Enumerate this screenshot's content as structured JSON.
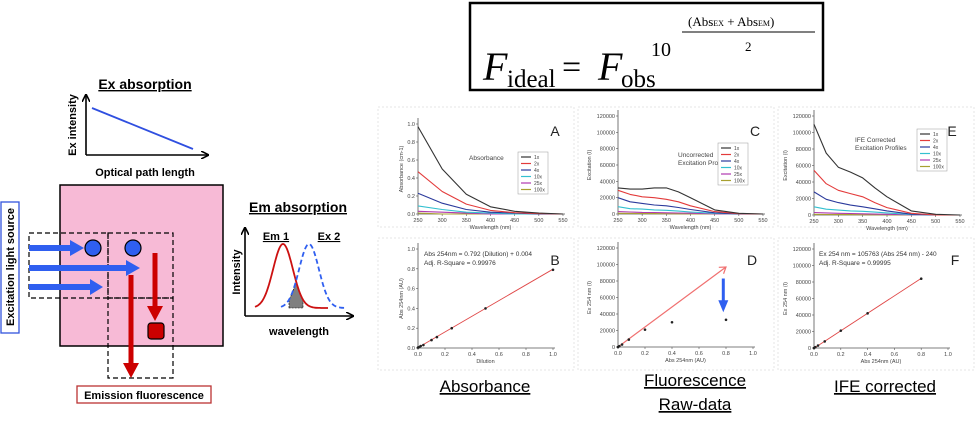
{
  "formula": {
    "lhs_symbol": "F",
    "lhs_sub": "ideal",
    "equals": "=",
    "rhs_symbol": "F",
    "rhs_sub": "obs",
    "base": "10",
    "numerator_open": "(Abs",
    "numerator_sub1": "EX",
    "numerator_mid": " + Abs",
    "numerator_sub2": "EM",
    "numerator_close": ")",
    "denominator": "2"
  },
  "schematic": {
    "ex_title": "Ex absorption",
    "ex_ylabel": "Ex intensity",
    "ex_xlabel": "Optical path length",
    "em_title": "Em absorption",
    "em_ylabel": "Intensity",
    "em_xlabel": "wavelength",
    "em_curve1": "Em 1",
    "em_curve2": "Ex 2",
    "source_label": "Excitation light source",
    "emission_label": "Emission fluorescence",
    "colors": {
      "cuvette": "#f7bad6",
      "excitation": "#2f5ff0",
      "emission": "#cc0000",
      "overlap": "#808080"
    }
  },
  "captions": {
    "absorbance": "Absorbance",
    "fluorescence_1": "Fluorescence",
    "fluorescence_2": "Raw-data",
    "ife": "IFE corrected"
  },
  "chart_data": [
    {
      "panel": "A",
      "type": "line",
      "title": "Absorbance",
      "xlabel": "Wavelength (nm)",
      "ylabel": "Absorbance (cm-1)",
      "xlim": [
        250,
        550
      ],
      "ylim": [
        0,
        1.0
      ],
      "xticks": [
        250,
        300,
        350,
        400,
        450,
        500,
        550
      ],
      "yticks": [
        "0.0",
        "0.2",
        "0.4",
        "0.6",
        "0.8",
        "1.0"
      ],
      "x": [
        250,
        300,
        350,
        400,
        450,
        500,
        550
      ],
      "series": [
        {
          "name": "1x",
          "color": "#333333",
          "values": [
            0.97,
            0.5,
            0.22,
            0.08,
            0.03,
            0.01,
            0.0
          ]
        },
        {
          "name": "2x",
          "color": "#e33b3b",
          "values": [
            0.47,
            0.25,
            0.11,
            0.04,
            0.015,
            0.005,
            0.0
          ]
        },
        {
          "name": "4x",
          "color": "#2b3a9c",
          "values": [
            0.23,
            0.12,
            0.05,
            0.02,
            0.01,
            0.0,
            0.0
          ]
        },
        {
          "name": "10x",
          "color": "#33c0d0",
          "values": [
            0.09,
            0.05,
            0.02,
            0.01,
            0.0,
            0.0,
            0.0
          ]
        },
        {
          "name": "25x",
          "color": "#b03ab0",
          "values": [
            0.03,
            0.02,
            0.01,
            0.0,
            0.0,
            0.0,
            0.0
          ]
        },
        {
          "name": "100x",
          "color": "#a8a030",
          "values": [
            0.01,
            0.0,
            0.0,
            0.0,
            0.0,
            0.0,
            0.0
          ]
        }
      ]
    },
    {
      "panel": "C",
      "type": "line",
      "title": "Uncorrected|Excitation Profiles",
      "xlabel": "Wavelength (nm)",
      "ylabel": "Excitation (I)",
      "xlim": [
        250,
        550
      ],
      "ylim": [
        0,
        120000
      ],
      "xticks": [
        250,
        300,
        350,
        400,
        450,
        500,
        550
      ],
      "yticks": [
        "0",
        "20000",
        "40000",
        "60000",
        "80000",
        "100000",
        "120000"
      ],
      "x": [
        250,
        275,
        300,
        325,
        350,
        375,
        400,
        450,
        500,
        550
      ],
      "series": [
        {
          "name": "1x",
          "color": "#333333",
          "values": [
            32000,
            30500,
            30500,
            32000,
            32000,
            27000,
            20000,
            5000,
            800,
            0
          ]
        },
        {
          "name": "2x",
          "color": "#e33b3b",
          "values": [
            29000,
            24000,
            21000,
            20000,
            18000,
            15000,
            10000,
            3000,
            400,
            0
          ]
        },
        {
          "name": "4x",
          "color": "#2b3a9c",
          "values": [
            20000,
            15000,
            13000,
            11000,
            10000,
            8000,
            5500,
            1500,
            0,
            0
          ]
        },
        {
          "name": "10x",
          "color": "#33c0d0",
          "values": [
            9000,
            6500,
            6000,
            5000,
            4500,
            3500,
            2500,
            800,
            0,
            0
          ]
        },
        {
          "name": "25x",
          "color": "#b03ab0",
          "values": [
            3000,
            2500,
            2000,
            1800,
            1500,
            1200,
            1000,
            300,
            0,
            0
          ]
        },
        {
          "name": "100x",
          "color": "#a8a030",
          "values": [
            800,
            700,
            600,
            500,
            400,
            300,
            300,
            100,
            0,
            0
          ]
        }
      ]
    },
    {
      "panel": "E",
      "type": "line",
      "title": "IFE Corrected|Excitation Profiles",
      "xlabel": "Wavelength (nm)",
      "ylabel": "Excitation (I)",
      "xlim": [
        250,
        550
      ],
      "ylim": [
        0,
        120000
      ],
      "xticks": [
        250,
        300,
        350,
        400,
        450,
        500,
        550
      ],
      "yticks": [
        "0",
        "20000",
        "40000",
        "60000",
        "80000",
        "100000",
        "120000"
      ],
      "x": [
        250,
        275,
        300,
        325,
        350,
        375,
        400,
        450,
        500,
        550
      ],
      "series": [
        {
          "name": "1x",
          "color": "#333333",
          "values": [
            110000,
            75000,
            58000,
            52000,
            45000,
            33000,
            22000,
            5000,
            800,
            0
          ]
        },
        {
          "name": "2x",
          "color": "#e33b3b",
          "values": [
            54000,
            38000,
            30000,
            26000,
            22000,
            15000,
            9000,
            2000,
            0,
            0
          ]
        },
        {
          "name": "4x",
          "color": "#2b3a9c",
          "values": [
            28000,
            19000,
            15000,
            12000,
            10000,
            7500,
            5000,
            1000,
            0,
            0
          ]
        },
        {
          "name": "10x",
          "color": "#33c0d0",
          "values": [
            10000,
            7000,
            6000,
            5000,
            4500,
            3500,
            2500,
            500,
            0,
            0
          ]
        },
        {
          "name": "25x",
          "color": "#b03ab0",
          "values": [
            3000,
            2500,
            2000,
            1800,
            1500,
            1100,
            800,
            200,
            0,
            0
          ]
        },
        {
          "name": "100x",
          "color": "#a8a030",
          "values": [
            800,
            600,
            500,
            450,
            400,
            300,
            200,
            0,
            0,
            0
          ]
        }
      ]
    },
    {
      "panel": "B",
      "type": "scatter",
      "annotation": [
        "Abs 254nm = 0.792 (Dilution) + 0.004",
        "Adj. R-Square = 0.99976"
      ],
      "xlabel": "Dilution",
      "ylabel": "Abs 254nm (AU)",
      "xlim": [
        0,
        1.0
      ],
      "ylim": [
        0,
        1.0
      ],
      "xticks": [
        "0.0",
        "0.2",
        "0.4",
        "0.6",
        "0.8",
        "1.0"
      ],
      "yticks": [
        "0.0",
        "0.2",
        "0.4",
        "0.6",
        "0.8",
        "1.0"
      ],
      "points": {
        "x": [
          0,
          0.01,
          0.02,
          0.04,
          0.1,
          0.14,
          0.25,
          0.5,
          1.0
        ],
        "y": [
          0.004,
          0.01,
          0.02,
          0.03,
          0.08,
          0.11,
          0.2,
          0.4,
          0.79
        ]
      },
      "fit": {
        "slope": 0.792,
        "intercept": 0.004,
        "x_range": [
          0,
          1.0
        ],
        "color": "#e04848"
      }
    },
    {
      "panel": "D",
      "type": "scatter",
      "xlabel": "Abs 254nm (AU)",
      "ylabel": "Ex 254 nm (I)",
      "xlim": [
        0,
        1.0
      ],
      "ylim": [
        0,
        120000
      ],
      "xticks": [
        "0.0",
        "0.2",
        "0.4",
        "0.6",
        "0.8",
        "1.0"
      ],
      "yticks": [
        "0",
        "20000",
        "40000",
        "60000",
        "80000",
        "100000",
        "120000"
      ],
      "points": {
        "x": [
          0,
          0.01,
          0.03,
          0.08,
          0.2,
          0.4,
          0.8
        ],
        "y": [
          0,
          1000,
          3000,
          9000,
          21000,
          30000,
          33000
        ]
      },
      "arrows": [
        {
          "from": [
            0,
            0
          ],
          "to": [
            0.8,
            97000
          ],
          "color": "#f07070"
        },
        {
          "from": [
            0.78,
            83000
          ],
          "to": [
            0.78,
            47000
          ],
          "color": "#2f5ff0"
        }
      ]
    },
    {
      "panel": "F",
      "type": "scatter",
      "annotation": [
        "Ex 254 nm = 105763 (Abs 254 nm) - 240",
        "Adj. R-Square = 0.99995"
      ],
      "xlabel": "Abs 254nm (AU)",
      "ylabel": "Ex 254 nm (I)",
      "xlim": [
        0,
        1.0
      ],
      "ylim": [
        0,
        120000
      ],
      "xticks": [
        "0.0",
        "0.2",
        "0.4",
        "0.6",
        "0.8",
        "1.0"
      ],
      "yticks": [
        "0",
        "20000",
        "40000",
        "60000",
        "80000",
        "100000",
        "120000"
      ],
      "points": {
        "x": [
          0,
          0.01,
          0.03,
          0.08,
          0.2,
          0.4,
          0.8
        ],
        "y": [
          0,
          1000,
          3000,
          8000,
          21000,
          42000,
          84000
        ]
      },
      "fit": {
        "slope": 105763,
        "intercept": -240,
        "x_range": [
          0,
          0.8
        ],
        "color": "#e04848"
      }
    }
  ]
}
